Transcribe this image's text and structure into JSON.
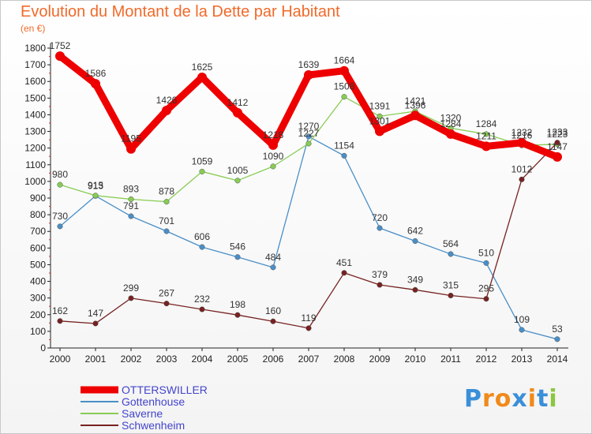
{
  "chart_data": {
    "type": "line",
    "title": "Evolution du Montant de la Dette par Habitant",
    "subtitle": "(en €)",
    "x": [
      "2000",
      "2001",
      "2002",
      "2003",
      "2004",
      "2005",
      "2006",
      "2007",
      "2008",
      "2009",
      "2010",
      "2011",
      "2012",
      "2013",
      "2014"
    ],
    "ylim": [
      0,
      1800
    ],
    "yticks": [
      0,
      100,
      200,
      300,
      400,
      500,
      600,
      700,
      800,
      900,
      1000,
      1100,
      1200,
      1300,
      1400,
      1500,
      1600,
      1700,
      1800
    ],
    "grid": false,
    "legend_position": "bottom-left",
    "series": [
      {
        "name": "OTTERSWILLER",
        "color": "#ee0000",
        "values": [
          1752,
          1586,
          1195,
          1426,
          1625,
          1412,
          1218,
          1639,
          1664,
          1301,
          1396,
          1284,
          1211,
          1232,
          1147
        ]
      },
      {
        "name": "Gottenhouse",
        "color": "#4a8fc7",
        "values": [
          730,
          913,
          791,
          701,
          606,
          546,
          484,
          1270,
          1154,
          720,
          642,
          564,
          510,
          109,
          53
        ]
      },
      {
        "name": "Saverne",
        "color": "#88cc55",
        "values": [
          980,
          915,
          893,
          878,
          1059,
          1005,
          1090,
          1227,
          1508,
          1391,
          1421,
          1320,
          1284,
          1216,
          1223
        ]
      },
      {
        "name": "Schwenheim",
        "color": "#772222",
        "values": [
          162,
          147,
          299,
          267,
          232,
          198,
          160,
          119,
          451,
          379,
          349,
          315,
          295,
          1012,
          1233
        ]
      }
    ]
  },
  "logo": {
    "letters": [
      "P",
      "r",
      "o",
      "x",
      "i",
      "t",
      "i"
    ],
    "colors": [
      "#3b8fd9",
      "#f08a1a",
      "#f08a1a",
      "#3b8fd9",
      "#f08a1a",
      "#3b8fd9",
      "#8cc63f"
    ]
  }
}
